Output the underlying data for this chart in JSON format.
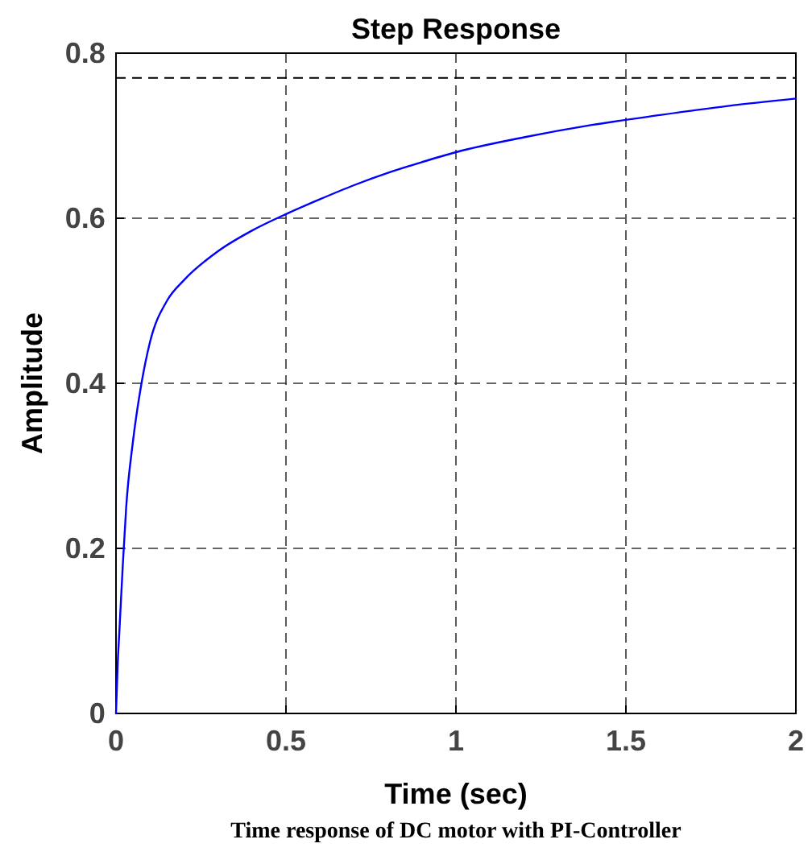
{
  "chart_data": {
    "type": "line",
    "title": "Step Response",
    "xlabel": "Time (sec)",
    "ylabel": "Amplitude",
    "annotations": [
      "Time response of DC motor with PI-Controller"
    ],
    "x": [
      0,
      0.005,
      0.01,
      0.02,
      0.03,
      0.05,
      0.075,
      0.1,
      0.15,
      0.2,
      0.3,
      0.4,
      0.5,
      0.6,
      0.7,
      0.8,
      0.9,
      1.0,
      1.2,
      1.4,
      1.6,
      1.8,
      2.0
    ],
    "series": [
      {
        "color": "#0000ff",
        "values": [
          0,
          0.06,
          0.1,
          0.18,
          0.25,
          0.33,
          0.4,
          0.45,
          0.5,
          0.525,
          0.56,
          0.585,
          0.605,
          0.623,
          0.64,
          0.655,
          0.668,
          0.68,
          0.698,
          0.713,
          0.725,
          0.736,
          0.745
        ]
      }
    ],
    "xlim": [
      0,
      2
    ],
    "xticks": [
      0,
      0.5,
      1,
      1.5,
      2
    ],
    "ylim": [
      0,
      0.8
    ],
    "yticks": [
      0,
      0.2,
      0.4,
      0.6,
      0.8
    ],
    "grid": true,
    "marker": "none",
    "line_style": "solid",
    "ref_lines": [
      {
        "axis": "y",
        "value": 0.77,
        "label": null,
        "color": "#000000",
        "line_style": "dashed"
      }
    ]
  }
}
